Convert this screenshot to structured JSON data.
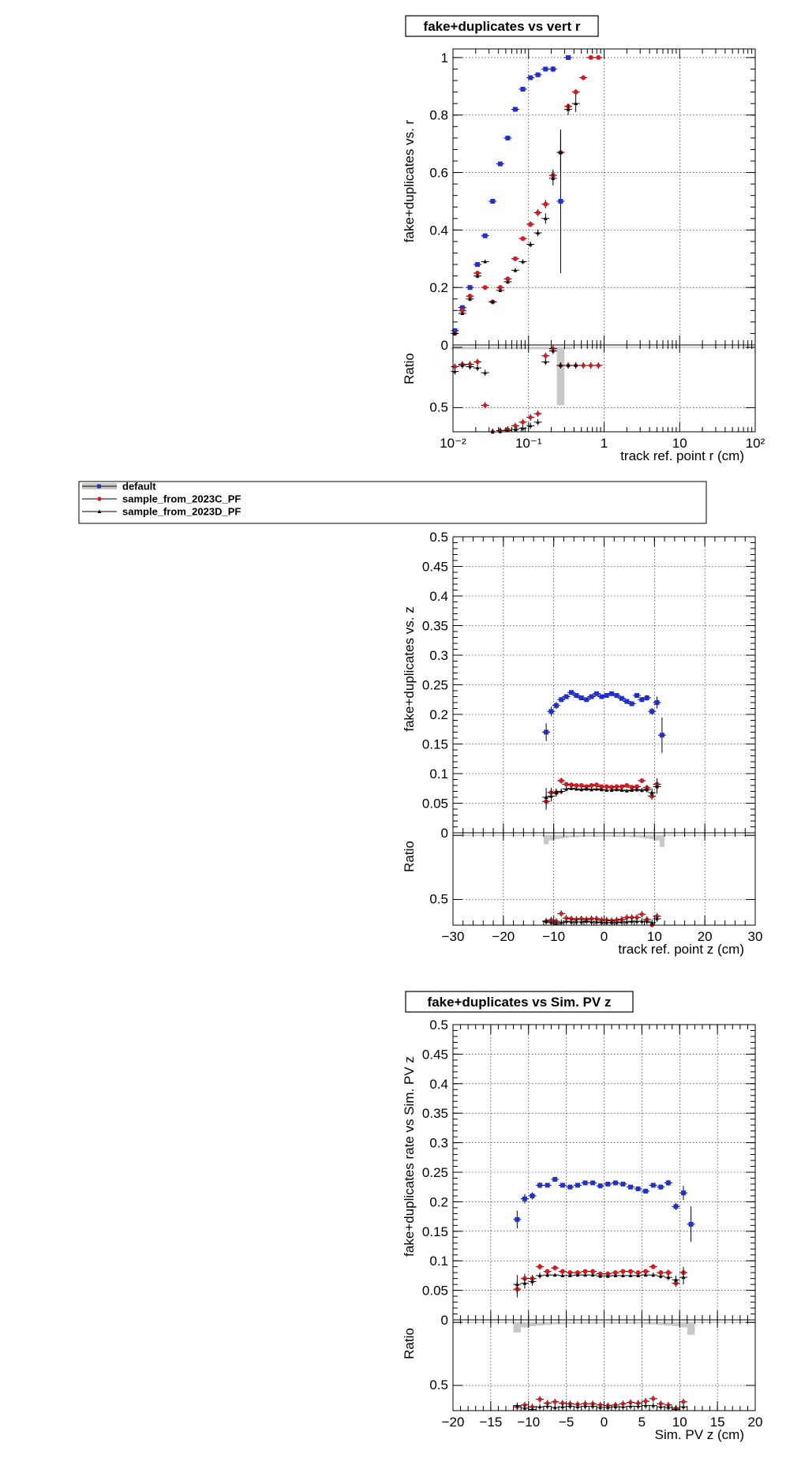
{
  "colors": {
    "default": "#1f2fd6",
    "c": "#e3151a",
    "d": "#000000",
    "band": "#c8c8c8"
  },
  "legend": {
    "entries": [
      {
        "key": "default",
        "label": "default"
      },
      {
        "key": "c",
        "label": "sample_from_2023C_PF"
      },
      {
        "key": "d",
        "label": "sample_from_2023D_PF"
      }
    ]
  },
  "chart_data": [
    {
      "type": "scatter",
      "title": "fake+duplicates vs vert r",
      "xlabel": "track ref. point r (cm)",
      "ylabel": "fake+duplicates vs. r",
      "ratio_ylabel": "Ratio",
      "xscale": "log",
      "xlim": [
        0.01,
        100
      ],
      "ylim": [
        0,
        1.03
      ],
      "ratio_ylim": [
        0.3,
        1.02
      ],
      "xticks": [
        0.01,
        0.1,
        1,
        10,
        100
      ],
      "xticklabels": [
        "10⁻²",
        "10⁻¹",
        "1",
        "10",
        "10²"
      ],
      "yticks": [
        0.2,
        0.4,
        0.6,
        0.8,
        1
      ],
      "yticklabels": [
        "0.2",
        "0.4",
        "0.6",
        "0.8",
        "1"
      ],
      "ratio_yticks": [
        0.5,
        1
      ],
      "ratio_yticklabels": [
        "0.5",
        "1"
      ],
      "series": [
        {
          "name": "default",
          "key": "default",
          "x": [
            0.0106,
            0.0133,
            0.0168,
            0.0211,
            0.0266,
            0.0335,
            0.0422,
            0.0531,
            0.0668,
            0.0841,
            0.106,
            0.133,
            0.168,
            0.211,
            0.266,
            0.335
          ],
          "y": [
            0.05,
            0.13,
            0.2,
            0.28,
            0.38,
            0.5,
            0.63,
            0.72,
            0.82,
            0.89,
            0.93,
            0.94,
            0.96,
            0.96,
            0.5,
            1.0
          ],
          "err": [
            0.006,
            0.006,
            0.006,
            0.006,
            0.006,
            0.006,
            0.006,
            0.006,
            0.006,
            0.006,
            0.006,
            0.006,
            0.008,
            0.01,
            0.25,
            0.004
          ],
          "ratio_band": [
            0.985,
            0.985,
            0.985,
            0.985,
            0.985,
            0.985,
            0.985,
            0.985,
            0.985,
            0.985,
            0.985,
            0.985,
            0.985,
            0.97,
            0.52,
            0.985
          ]
        },
        {
          "name": "sample_from_2023C_PF",
          "key": "c",
          "x": [
            0.0106,
            0.0133,
            0.0168,
            0.0211,
            0.0266,
            0.0335,
            0.0422,
            0.0531,
            0.0668,
            0.0841,
            0.106,
            0.133,
            0.168,
            0.211,
            0.266,
            0.335,
            0.422,
            0.531,
            0.668,
            0.841
          ],
          "y": [
            0.04,
            0.12,
            0.17,
            0.25,
            0.2,
            0.15,
            0.2,
            0.23,
            0.3,
            0.37,
            0.42,
            0.46,
            0.49,
            0.59,
            0.67,
            0.83,
            0.88,
            0.93,
            1.0,
            1.0
          ],
          "err": [
            0.006,
            0.006,
            0.008,
            0.008,
            0.006,
            0.006,
            0.006,
            0.008,
            0.008,
            0.008,
            0.01,
            0.012,
            0.015,
            0.02,
            0.06,
            0.01,
            0.01,
            0.008,
            0.004,
            0.004
          ],
          "ratio": [
            0.84,
            0.86,
            0.86,
            0.88,
            0.52,
            0.3,
            0.31,
            0.32,
            0.35,
            0.38,
            0.42,
            0.45,
            0.93,
            0.99,
            0.85,
            0.85,
            0.85,
            0.85,
            0.85,
            0.85
          ]
        },
        {
          "name": "sample_from_2023D_PF",
          "key": "d",
          "x": [
            0.0106,
            0.0133,
            0.0168,
            0.0211,
            0.0266,
            0.0335,
            0.0422,
            0.0531,
            0.0668,
            0.0841,
            0.106,
            0.133,
            0.168,
            0.211,
            0.266,
            0.335,
            0.422
          ],
          "y": [
            0.04,
            0.11,
            0.16,
            0.24,
            0.29,
            0.15,
            0.19,
            0.22,
            0.26,
            0.29,
            0.35,
            0.39,
            0.44,
            0.58,
            0.67,
            0.82,
            0.84
          ],
          "err": [
            0.006,
            0.006,
            0.008,
            0.008,
            0.006,
            0.006,
            0.006,
            0.008,
            0.008,
            0.008,
            0.01,
            0.012,
            0.018,
            0.025,
            0.07,
            0.02,
            0.03
          ],
          "ratio": [
            0.8,
            0.85,
            0.84,
            0.83,
            0.79,
            0.3,
            0.3,
            0.31,
            0.32,
            0.33,
            0.35,
            0.38,
            0.88,
            0.97,
            0.85,
            0.85,
            0.85
          ]
        }
      ]
    },
    {
      "type": "scatter",
      "title": "",
      "xlabel": "track ref. point z (cm)",
      "ylabel": "fake+duplicates vs. z",
      "ratio_ylabel": "Ratio",
      "xscale": "linear",
      "xlim": [
        -30,
        30
      ],
      "ylim": [
        0,
        0.5
      ],
      "ratio_ylim": [
        0.3,
        1.02
      ],
      "xticks": [
        -30,
        -20,
        -10,
        0,
        10,
        20,
        30
      ],
      "xticklabels": [
        "−30",
        "−20",
        "−10",
        "0",
        "10",
        "20",
        "30"
      ],
      "yticks": [
        0.05,
        0.1,
        0.15,
        0.2,
        0.25,
        0.3,
        0.35,
        0.4,
        0.45,
        0.5
      ],
      "yticklabels": [
        "0.05",
        "0.1",
        "0.15",
        "0.2",
        "0.25",
        "0.3",
        "0.35",
        "0.4",
        "0.45",
        "0.5"
      ],
      "ratio_yticks": [
        0.5,
        1
      ],
      "ratio_yticklabels": [
        "0.5",
        "1"
      ],
      "series": [
        {
          "name": "default",
          "key": "default",
          "x": [
            -11.5,
            -10.5,
            -9.5,
            -8.5,
            -7.5,
            -6.5,
            -5.5,
            -4.5,
            -3.5,
            -2.5,
            -1.5,
            -0.5,
            0.5,
            1.5,
            2.5,
            3.5,
            4.5,
            5.5,
            6.5,
            7.5,
            8.5,
            9.5,
            10.5,
            11.5
          ],
          "y": [
            0.17,
            0.205,
            0.215,
            0.225,
            0.23,
            0.237,
            0.232,
            0.228,
            0.225,
            0.23,
            0.235,
            0.23,
            0.232,
            0.235,
            0.232,
            0.227,
            0.222,
            0.218,
            0.232,
            0.225,
            0.228,
            0.205,
            0.22,
            0.165
          ],
          "err": [
            0.015,
            0.008,
            0.006,
            0.004,
            0.004,
            0.003,
            0.003,
            0.003,
            0.003,
            0.003,
            0.003,
            0.003,
            0.003,
            0.003,
            0.003,
            0.003,
            0.003,
            0.003,
            0.004,
            0.004,
            0.005,
            0.006,
            0.01,
            0.03
          ],
          "ratio_band": [
            0.93,
            0.96,
            0.97,
            0.975,
            0.98,
            0.985,
            0.985,
            0.99,
            0.99,
            0.99,
            0.99,
            0.99,
            0.99,
            0.99,
            0.99,
            0.99,
            0.99,
            0.985,
            0.985,
            0.98,
            0.975,
            0.97,
            0.96,
            0.91
          ]
        },
        {
          "name": "sample_from_2023C_PF",
          "key": "c",
          "x": [
            -11.5,
            -10.5,
            -9.5,
            -8.5,
            -7.5,
            -6.5,
            -5.5,
            -4.5,
            -3.5,
            -2.5,
            -1.5,
            -0.5,
            0.5,
            1.5,
            2.5,
            3.5,
            4.5,
            5.5,
            6.5,
            7.5,
            8.5,
            9.5,
            10.5
          ],
          "y": [
            0.053,
            0.068,
            0.068,
            0.088,
            0.082,
            0.081,
            0.08,
            0.08,
            0.078,
            0.08,
            0.081,
            0.078,
            0.078,
            0.077,
            0.078,
            0.078,
            0.08,
            0.077,
            0.078,
            0.088,
            0.076,
            0.062,
            0.082
          ],
          "err": [
            0.014,
            0.008,
            0.006,
            0.005,
            0.004,
            0.003,
            0.003,
            0.003,
            0.003,
            0.003,
            0.003,
            0.003,
            0.003,
            0.003,
            0.003,
            0.003,
            0.003,
            0.003,
            0.004,
            0.004,
            0.005,
            0.006,
            0.01
          ],
          "ratio": [
            0.33,
            0.34,
            0.33,
            0.39,
            0.355,
            0.35,
            0.345,
            0.35,
            0.345,
            0.35,
            0.35,
            0.34,
            0.34,
            0.335,
            0.34,
            0.345,
            0.36,
            0.36,
            0.36,
            0.385,
            0.345,
            0.3,
            0.37
          ]
        },
        {
          "name": "sample_from_2023D_PF",
          "key": "d",
          "x": [
            -11.5,
            -10.5,
            -9.5,
            -8.5,
            -7.5,
            -6.5,
            -5.5,
            -4.5,
            -3.5,
            -2.5,
            -1.5,
            -0.5,
            0.5,
            1.5,
            2.5,
            3.5,
            4.5,
            5.5,
            6.5,
            7.5,
            8.5,
            9.5,
            10.5
          ],
          "y": [
            0.06,
            0.062,
            0.068,
            0.07,
            0.074,
            0.075,
            0.074,
            0.073,
            0.074,
            0.073,
            0.074,
            0.073,
            0.072,
            0.072,
            0.073,
            0.072,
            0.071,
            0.072,
            0.073,
            0.072,
            0.073,
            0.068,
            0.078
          ],
          "err": [
            0.016,
            0.009,
            0.007,
            0.005,
            0.004,
            0.003,
            0.003,
            0.003,
            0.003,
            0.003,
            0.003,
            0.003,
            0.003,
            0.003,
            0.003,
            0.003,
            0.003,
            0.003,
            0.004,
            0.004,
            0.005,
            0.007,
            0.012
          ],
          "ratio": [
            0.33,
            0.32,
            0.31,
            0.32,
            0.33,
            0.325,
            0.325,
            0.325,
            0.33,
            0.325,
            0.325,
            0.32,
            0.32,
            0.32,
            0.32,
            0.325,
            0.325,
            0.33,
            0.33,
            0.33,
            0.33,
            0.32,
            0.35
          ]
        }
      ]
    },
    {
      "type": "scatter",
      "title": "fake+duplicates vs Sim. PV z",
      "xlabel": "Sim. PV z (cm)",
      "ylabel": "fake+duplicates rate vs Sim. PV z",
      "ratio_ylabel": "Ratio",
      "xscale": "linear",
      "xlim": [
        -20,
        20
      ],
      "ylim": [
        0,
        0.5
      ],
      "ratio_ylim": [
        0.3,
        1.02
      ],
      "xticks": [
        -20,
        -15,
        -10,
        -5,
        0,
        5,
        10,
        15,
        20
      ],
      "xticklabels": [
        "−20",
        "−15",
        "−10",
        "−5",
        "0",
        "5",
        "10",
        "15",
        "20"
      ],
      "yticks": [
        0.05,
        0.1,
        0.15,
        0.2,
        0.25,
        0.3,
        0.35,
        0.4,
        0.45,
        0.5
      ],
      "yticklabels": [
        "0.05",
        "0.1",
        "0.15",
        "0.2",
        "0.25",
        "0.3",
        "0.35",
        "0.4",
        "0.45",
        "0.5"
      ],
      "ratio_yticks": [
        0.5,
        1
      ],
      "ratio_yticklabels": [
        "0.5",
        "1"
      ],
      "series": [
        {
          "name": "default",
          "key": "default",
          "x": [
            -11.5,
            -10.5,
            -9.5,
            -8.5,
            -7.5,
            -6.5,
            -5.5,
            -4.5,
            -3.5,
            -2.5,
            -1.5,
            -0.5,
            0.5,
            1.5,
            2.5,
            3.5,
            4.5,
            5.5,
            6.5,
            7.5,
            8.5,
            9.5,
            10.5,
            11.5
          ],
          "y": [
            0.17,
            0.205,
            0.21,
            0.228,
            0.228,
            0.238,
            0.228,
            0.225,
            0.228,
            0.232,
            0.232,
            0.227,
            0.23,
            0.232,
            0.23,
            0.225,
            0.222,
            0.218,
            0.228,
            0.225,
            0.232,
            0.192,
            0.215,
            0.162
          ],
          "err": [
            0.015,
            0.008,
            0.006,
            0.005,
            0.004,
            0.004,
            0.003,
            0.003,
            0.003,
            0.003,
            0.003,
            0.003,
            0.003,
            0.003,
            0.003,
            0.003,
            0.003,
            0.003,
            0.004,
            0.004,
            0.005,
            0.006,
            0.012,
            0.03
          ],
          "ratio_band": [
            0.92,
            0.96,
            0.97,
            0.975,
            0.98,
            0.985,
            0.985,
            0.99,
            0.99,
            0.99,
            0.99,
            0.99,
            0.99,
            0.99,
            0.99,
            0.99,
            0.99,
            0.985,
            0.985,
            0.98,
            0.975,
            0.97,
            0.96,
            0.9
          ]
        },
        {
          "name": "sample_from_2023C_PF",
          "key": "c",
          "x": [
            -11.5,
            -10.5,
            -9.5,
            -8.5,
            -7.5,
            -6.5,
            -5.5,
            -4.5,
            -3.5,
            -2.5,
            -1.5,
            -0.5,
            0.5,
            1.5,
            2.5,
            3.5,
            4.5,
            5.5,
            6.5,
            7.5,
            8.5,
            9.5,
            10.5
          ],
          "y": [
            0.052,
            0.07,
            0.07,
            0.09,
            0.082,
            0.088,
            0.082,
            0.08,
            0.08,
            0.082,
            0.082,
            0.078,
            0.078,
            0.08,
            0.082,
            0.082,
            0.08,
            0.082,
            0.09,
            0.08,
            0.08,
            0.062,
            0.08
          ],
          "err": [
            0.014,
            0.008,
            0.006,
            0.005,
            0.004,
            0.004,
            0.003,
            0.003,
            0.003,
            0.003,
            0.003,
            0.003,
            0.003,
            0.003,
            0.003,
            0.003,
            0.003,
            0.003,
            0.004,
            0.004,
            0.005,
            0.006,
            0.01
          ],
          "ratio": [
            0.33,
            0.345,
            0.33,
            0.39,
            0.36,
            0.37,
            0.36,
            0.355,
            0.35,
            0.355,
            0.355,
            0.345,
            0.34,
            0.345,
            0.355,
            0.365,
            0.36,
            0.375,
            0.395,
            0.355,
            0.345,
            0.32,
            0.37
          ]
        },
        {
          "name": "sample_from_2023D_PF",
          "key": "d",
          "x": [
            -11.5,
            -10.5,
            -9.5,
            -8.5,
            -7.5,
            -6.5,
            -5.5,
            -4.5,
            -3.5,
            -2.5,
            -1.5,
            -0.5,
            0.5,
            1.5,
            2.5,
            3.5,
            4.5,
            5.5,
            6.5,
            7.5,
            8.5,
            9.5,
            10.5
          ],
          "y": [
            0.06,
            0.062,
            0.065,
            0.075,
            0.076,
            0.076,
            0.075,
            0.075,
            0.076,
            0.076,
            0.076,
            0.074,
            0.074,
            0.075,
            0.075,
            0.075,
            0.075,
            0.076,
            0.076,
            0.074,
            0.072,
            0.068,
            0.072
          ],
          "err": [
            0.016,
            0.009,
            0.007,
            0.005,
            0.004,
            0.003,
            0.003,
            0.003,
            0.003,
            0.003,
            0.003,
            0.003,
            0.003,
            0.003,
            0.003,
            0.003,
            0.003,
            0.003,
            0.004,
            0.004,
            0.005,
            0.007,
            0.012
          ],
          "ratio": [
            0.34,
            0.32,
            0.31,
            0.33,
            0.335,
            0.325,
            0.33,
            0.335,
            0.33,
            0.335,
            0.335,
            0.325,
            0.325,
            0.33,
            0.33,
            0.335,
            0.335,
            0.34,
            0.34,
            0.33,
            0.325,
            0.31,
            0.33
          ]
        }
      ]
    }
  ]
}
